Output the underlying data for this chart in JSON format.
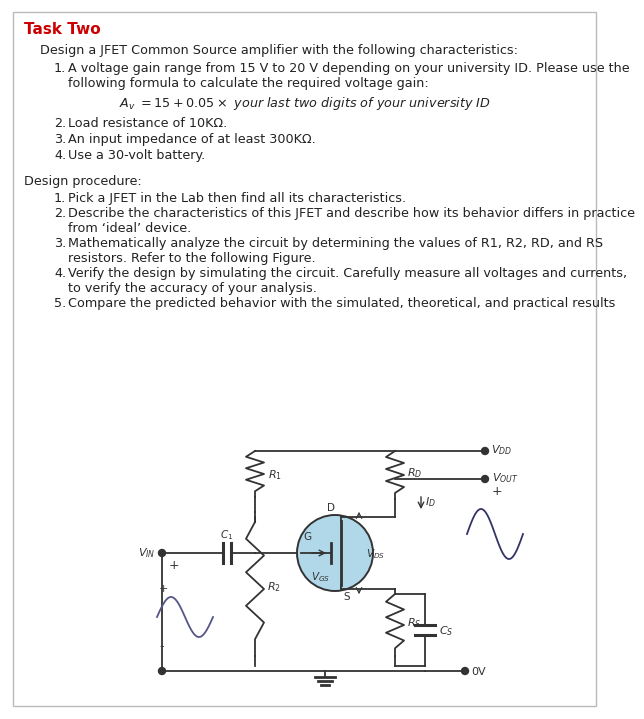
{
  "title": "Task Two",
  "title_color": "#cc0000",
  "bg_color": "#f5f5f5",
  "border_color": "#aaaaaa",
  "text_color": "#222222",
  "intro": "Design a JFET Common Source amplifier with the following characteristics:",
  "char_items": [
    [
      "A voltage gain range from 15 V to 20 V depending on your university ID. Please use the",
      "following formula to calculate the required voltage gain:"
    ],
    [
      "Load resistance of 10KΩ."
    ],
    [
      "An input impedance of at least 300KΩ."
    ],
    [
      "Use a 30-volt battery."
    ]
  ],
  "design_proc_title": "Design procedure:",
  "proc_items": [
    [
      "Pick a JFET in the Lab then find all its characteristics."
    ],
    [
      "Describe the characteristics of this JFET and describe how its behavior differs in practice",
      "from ‘ideal’ device."
    ],
    [
      "Mathematically analyze the circuit by determining the values of R1, R2, RD, and RS",
      "resistors. Refer to the following Figure."
    ],
    [
      "Verify the design by simulating the circuit. Carefully measure all voltages and currents,",
      "to verify the accuracy of your analysis."
    ],
    [
      "Compare the predicted behavior with the simulated, theoretical, and practical results"
    ]
  ]
}
